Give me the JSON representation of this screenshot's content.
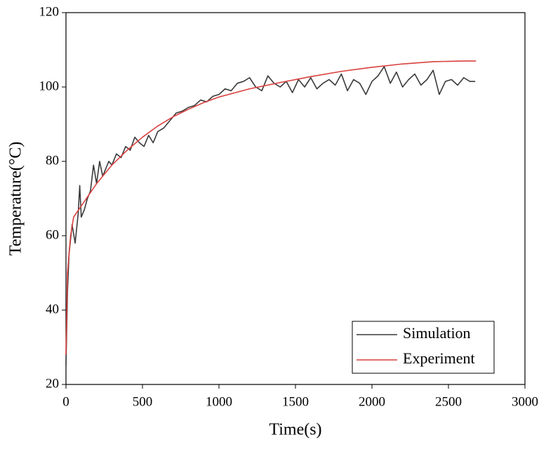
{
  "chart_data": {
    "type": "line",
    "xlabel": "Time(s)",
    "ylabel": "Temperature(°C)",
    "xlim": [
      0,
      3000
    ],
    "xticks": [
      0,
      500,
      1000,
      1500,
      2000,
      2500,
      3000
    ],
    "ylim": [
      20,
      120
    ],
    "yticks": [
      20,
      40,
      60,
      80,
      100,
      120
    ],
    "legend": "lower right",
    "series": [
      {
        "name": "Simulation",
        "color": "#3a3a3a",
        "x": [
          0,
          10,
          20,
          40,
          60,
          80,
          90,
          100,
          120,
          140,
          160,
          180,
          200,
          220,
          240,
          260,
          280,
          300,
          330,
          360,
          390,
          420,
          450,
          480,
          510,
          540,
          570,
          600,
          640,
          680,
          720,
          760,
          800,
          840,
          880,
          920,
          960,
          1000,
          1040,
          1080,
          1120,
          1160,
          1200,
          1240,
          1280,
          1320,
          1360,
          1400,
          1440,
          1480,
          1520,
          1560,
          1600,
          1640,
          1680,
          1720,
          1760,
          1800,
          1840,
          1880,
          1920,
          1960,
          2000,
          2040,
          2080,
          2120,
          2160,
          2200,
          2240,
          2280,
          2320,
          2360,
          2400,
          2440,
          2480,
          2520,
          2560,
          2600,
          2640,
          2675
        ],
        "values": [
          25,
          45,
          55,
          63,
          58,
          66,
          73.5,
          65,
          67,
          70,
          72,
          79,
          74,
          80,
          76,
          78,
          80,
          79,
          82,
          81,
          84,
          83,
          86.5,
          85,
          84,
          87,
          85,
          88,
          89,
          91,
          93,
          93.5,
          94.5,
          95,
          96.5,
          96,
          97.5,
          98,
          99.5,
          99,
          101,
          101.5,
          102.5,
          100,
          99,
          103,
          101,
          100,
          101.5,
          98.5,
          102,
          100,
          102.5,
          99.5,
          101,
          102,
          100.5,
          103.5,
          99,
          102,
          101,
          98,
          101.5,
          103,
          105.5,
          101,
          104,
          100,
          102,
          103.5,
          100.5,
          102,
          104.5,
          98,
          101.5,
          102,
          100.5,
          102.5,
          101.5,
          101.5
        ]
      },
      {
        "name": "Experiment",
        "color": "#d9413f",
        "x": [
          0,
          10,
          30,
          50,
          100,
          200,
          300,
          400,
          500,
          600,
          700,
          800,
          900,
          1000,
          1200,
          1400,
          1600,
          1800,
          2000,
          2200,
          2400,
          2600,
          2680
        ],
        "values": [
          28,
          50,
          60,
          65,
          68,
          74,
          79,
          83,
          86.5,
          89.5,
          92,
          94,
          95.8,
          97.3,
          99.5,
          101.2,
          102.8,
          104.2,
          105.3,
          106.2,
          106.8,
          107,
          107
        ]
      }
    ]
  }
}
